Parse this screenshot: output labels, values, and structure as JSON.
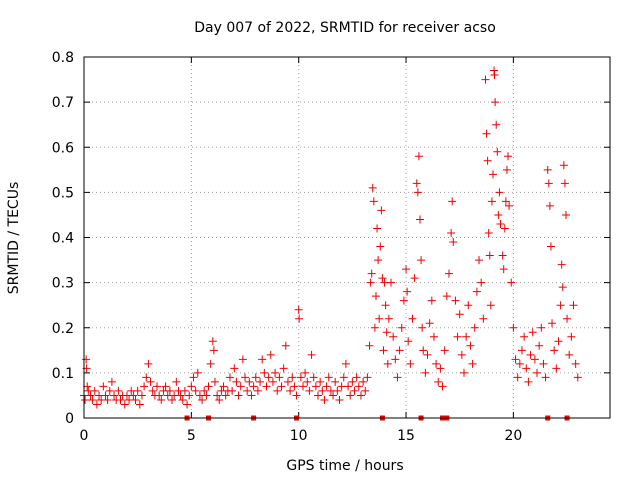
{
  "chart_data": {
    "type": "scatter",
    "title": "Day 007 of 2022, SRMTID for receiver acso",
    "xlabel": "GPS time / hours",
    "ylabel": "SRMTID / TECUs",
    "xlim": [
      0,
      24.5
    ],
    "ylim": [
      0,
      0.8
    ],
    "xticks": [
      0,
      5,
      10,
      15,
      20
    ],
    "yticks": [
      0,
      0.1,
      0.2,
      0.3,
      0.4,
      0.5,
      0.6,
      0.7,
      0.8
    ],
    "grid": true,
    "marker": "+",
    "marker_color": "#ee0000",
    "series": [
      {
        "name": "SRMTID",
        "points": [
          [
            0.0,
            0.05
          ],
          [
            0.05,
            0.04
          ],
          [
            0.1,
            0.13
          ],
          [
            0.12,
            0.11
          ],
          [
            0.15,
            0.07
          ],
          [
            0.2,
            0.06
          ],
          [
            0.3,
            0.05
          ],
          [
            0.4,
            0.04
          ],
          [
            0.5,
            0.06
          ],
          [
            0.6,
            0.03
          ],
          [
            0.7,
            0.05
          ],
          [
            0.8,
            0.04
          ],
          [
            0.9,
            0.07
          ],
          [
            1.0,
            0.05
          ],
          [
            1.1,
            0.04
          ],
          [
            1.2,
            0.06
          ],
          [
            1.3,
            0.08
          ],
          [
            1.4,
            0.05
          ],
          [
            1.5,
            0.04
          ],
          [
            1.6,
            0.06
          ],
          [
            1.7,
            0.04
          ],
          [
            1.8,
            0.05
          ],
          [
            1.9,
            0.03
          ],
          [
            2.0,
            0.05
          ],
          [
            2.1,
            0.04
          ],
          [
            2.2,
            0.06
          ],
          [
            2.3,
            0.05
          ],
          [
            2.4,
            0.04
          ],
          [
            2.5,
            0.06
          ],
          [
            2.6,
            0.03
          ],
          [
            2.7,
            0.05
          ],
          [
            2.8,
            0.07
          ],
          [
            2.9,
            0.09
          ],
          [
            3.0,
            0.12
          ],
          [
            3.1,
            0.08
          ],
          [
            3.2,
            0.06
          ],
          [
            3.3,
            0.05
          ],
          [
            3.4,
            0.07
          ],
          [
            3.5,
            0.05
          ],
          [
            3.6,
            0.04
          ],
          [
            3.7,
            0.06
          ],
          [
            3.8,
            0.07
          ],
          [
            3.9,
            0.05
          ],
          [
            4.0,
            0.06
          ],
          [
            4.1,
            0.04
          ],
          [
            4.2,
            0.05
          ],
          [
            4.3,
            0.08
          ],
          [
            4.4,
            0.06
          ],
          [
            4.5,
            0.05
          ],
          [
            4.6,
            0.04
          ],
          [
            4.7,
            0.06
          ],
          [
            4.8,
            0.03
          ],
          [
            4.9,
            0.05
          ],
          [
            5.0,
            0.07
          ],
          [
            5.1,
            0.09
          ],
          [
            5.2,
            0.06
          ],
          [
            5.3,
            0.1
          ],
          [
            5.4,
            0.05
          ],
          [
            5.5,
            0.04
          ],
          [
            5.6,
            0.06
          ],
          [
            5.7,
            0.05
          ],
          [
            5.8,
            0.07
          ],
          [
            5.9,
            0.12
          ],
          [
            6.0,
            0.17
          ],
          [
            6.05,
            0.15
          ],
          [
            6.1,
            0.08
          ],
          [
            6.2,
            0.05
          ],
          [
            6.3,
            0.04
          ],
          [
            6.4,
            0.06
          ],
          [
            6.5,
            0.07
          ],
          [
            6.6,
            0.05
          ],
          [
            6.7,
            0.06
          ],
          [
            6.8,
            0.09
          ],
          [
            6.9,
            0.06
          ],
          [
            7.0,
            0.11
          ],
          [
            7.1,
            0.08
          ],
          [
            7.2,
            0.05
          ],
          [
            7.3,
            0.07
          ],
          [
            7.4,
            0.13
          ],
          [
            7.5,
            0.09
          ],
          [
            7.6,
            0.06
          ],
          [
            7.7,
            0.08
          ],
          [
            7.8,
            0.05
          ],
          [
            7.9,
            0.07
          ],
          [
            8.0,
            0.09
          ],
          [
            8.1,
            0.06
          ],
          [
            8.2,
            0.08
          ],
          [
            8.3,
            0.13
          ],
          [
            8.4,
            0.1
          ],
          [
            8.5,
            0.07
          ],
          [
            8.6,
            0.09
          ],
          [
            8.7,
            0.14
          ],
          [
            8.8,
            0.08
          ],
          [
            8.9,
            0.1
          ],
          [
            9.0,
            0.06
          ],
          [
            9.1,
            0.09
          ],
          [
            9.2,
            0.07
          ],
          [
            9.3,
            0.11
          ],
          [
            9.4,
            0.16
          ],
          [
            9.5,
            0.08
          ],
          [
            9.6,
            0.06
          ],
          [
            9.7,
            0.09
          ],
          [
            9.8,
            0.07
          ],
          [
            9.9,
            0.05
          ],
          [
            10.0,
            0.24
          ],
          [
            10.02,
            0.22
          ],
          [
            10.1,
            0.09
          ],
          [
            10.2,
            0.07
          ],
          [
            10.3,
            0.1
          ],
          [
            10.4,
            0.08
          ],
          [
            10.5,
            0.06
          ],
          [
            10.6,
            0.14
          ],
          [
            10.7,
            0.09
          ],
          [
            10.8,
            0.07
          ],
          [
            10.9,
            0.05
          ],
          [
            11.0,
            0.08
          ],
          [
            11.1,
            0.06
          ],
          [
            11.2,
            0.04
          ],
          [
            11.3,
            0.07
          ],
          [
            11.4,
            0.09
          ],
          [
            11.5,
            0.06
          ],
          [
            11.6,
            0.05
          ],
          [
            11.7,
            0.08
          ],
          [
            11.8,
            0.06
          ],
          [
            11.9,
            0.04
          ],
          [
            12.0,
            0.07
          ],
          [
            12.1,
            0.09
          ],
          [
            12.2,
            0.12
          ],
          [
            12.3,
            0.07
          ],
          [
            12.4,
            0.05
          ],
          [
            12.5,
            0.08
          ],
          [
            12.6,
            0.06
          ],
          [
            12.7,
            0.09
          ],
          [
            12.8,
            0.07
          ],
          [
            12.9,
            0.05
          ],
          [
            13.0,
            0.08
          ],
          [
            13.1,
            0.06
          ],
          [
            13.2,
            0.09
          ],
          [
            13.3,
            0.16
          ],
          [
            13.35,
            0.3
          ],
          [
            13.4,
            0.32
          ],
          [
            13.45,
            0.51
          ],
          [
            13.5,
            0.48
          ],
          [
            13.55,
            0.2
          ],
          [
            13.6,
            0.27
          ],
          [
            13.65,
            0.42
          ],
          [
            13.7,
            0.35
          ],
          [
            13.75,
            0.22
          ],
          [
            13.8,
            0.38
          ],
          [
            13.85,
            0.46
          ],
          [
            13.9,
            0.31
          ],
          [
            13.95,
            0.15
          ],
          [
            14.0,
            0.3
          ],
          [
            14.05,
            0.25
          ],
          [
            14.1,
            0.19
          ],
          [
            14.15,
            0.12
          ],
          [
            14.2,
            0.22
          ],
          [
            14.3,
            0.3
          ],
          [
            14.4,
            0.18
          ],
          [
            14.5,
            0.13
          ],
          [
            14.6,
            0.09
          ],
          [
            14.7,
            0.15
          ],
          [
            14.8,
            0.2
          ],
          [
            14.9,
            0.26
          ],
          [
            15.0,
            0.33
          ],
          [
            15.05,
            0.28
          ],
          [
            15.1,
            0.17
          ],
          [
            15.2,
            0.12
          ],
          [
            15.3,
            0.22
          ],
          [
            15.4,
            0.31
          ],
          [
            15.5,
            0.52
          ],
          [
            15.55,
            0.5
          ],
          [
            15.6,
            0.58
          ],
          [
            15.65,
            0.44
          ],
          [
            15.7,
            0.35
          ],
          [
            15.75,
            0.2
          ],
          [
            15.8,
            0.15
          ],
          [
            15.9,
            0.1
          ],
          [
            16.0,
            0.14
          ],
          [
            16.1,
            0.21
          ],
          [
            16.2,
            0.26
          ],
          [
            16.3,
            0.18
          ],
          [
            16.4,
            0.12
          ],
          [
            16.5,
            0.08
          ],
          [
            16.6,
            0.11
          ],
          [
            16.7,
            0.07
          ],
          [
            16.8,
            0.15
          ],
          [
            16.9,
            0.27
          ],
          [
            17.0,
            0.32
          ],
          [
            17.1,
            0.41
          ],
          [
            17.15,
            0.48
          ],
          [
            17.2,
            0.39
          ],
          [
            17.3,
            0.26
          ],
          [
            17.4,
            0.18
          ],
          [
            17.5,
            0.23
          ],
          [
            17.6,
            0.14
          ],
          [
            17.7,
            0.1
          ],
          [
            17.8,
            0.18
          ],
          [
            17.9,
            0.25
          ],
          [
            18.0,
            0.16
          ],
          [
            18.1,
            0.12
          ],
          [
            18.2,
            0.2
          ],
          [
            18.3,
            0.28
          ],
          [
            18.4,
            0.35
          ],
          [
            18.5,
            0.3
          ],
          [
            18.6,
            0.22
          ],
          [
            18.7,
            0.75
          ],
          [
            18.75,
            0.63
          ],
          [
            18.8,
            0.57
          ],
          [
            18.85,
            0.41
          ],
          [
            18.9,
            0.36
          ],
          [
            18.95,
            0.25
          ],
          [
            19.0,
            0.48
          ],
          [
            19.05,
            0.54
          ],
          [
            19.1,
            0.77
          ],
          [
            19.12,
            0.76
          ],
          [
            19.15,
            0.7
          ],
          [
            19.2,
            0.65
          ],
          [
            19.25,
            0.59
          ],
          [
            19.3,
            0.45
          ],
          [
            19.35,
            0.5
          ],
          [
            19.4,
            0.43
          ],
          [
            19.5,
            0.36
          ],
          [
            19.55,
            0.33
          ],
          [
            19.6,
            0.42
          ],
          [
            19.65,
            0.48
          ],
          [
            19.7,
            0.55
          ],
          [
            19.75,
            0.58
          ],
          [
            19.8,
            0.47
          ],
          [
            19.9,
            0.3
          ],
          [
            20.0,
            0.2
          ],
          [
            20.1,
            0.13
          ],
          [
            20.2,
            0.09
          ],
          [
            20.3,
            0.12
          ],
          [
            20.4,
            0.15
          ],
          [
            20.5,
            0.18
          ],
          [
            20.6,
            0.11
          ],
          [
            20.7,
            0.08
          ],
          [
            20.8,
            0.14
          ],
          [
            20.9,
            0.19
          ],
          [
            21.0,
            0.13
          ],
          [
            21.1,
            0.1
          ],
          [
            21.2,
            0.16
          ],
          [
            21.3,
            0.2
          ],
          [
            21.4,
            0.12
          ],
          [
            21.5,
            0.09
          ],
          [
            21.6,
            0.55
          ],
          [
            21.65,
            0.52
          ],
          [
            21.7,
            0.47
          ],
          [
            21.75,
            0.38
          ],
          [
            21.8,
            0.21
          ],
          [
            21.9,
            0.15
          ],
          [
            22.0,
            0.11
          ],
          [
            22.1,
            0.17
          ],
          [
            22.2,
            0.25
          ],
          [
            22.25,
            0.34
          ],
          [
            22.3,
            0.29
          ],
          [
            22.35,
            0.56
          ],
          [
            22.4,
            0.52
          ],
          [
            22.45,
            0.45
          ],
          [
            22.5,
            0.22
          ],
          [
            22.6,
            0.14
          ],
          [
            22.7,
            0.18
          ],
          [
            22.8,
            0.25
          ],
          [
            22.9,
            0.12
          ],
          [
            23.0,
            0.09
          ]
        ]
      }
    ],
    "data_gap_markers_x": [
      4.8,
      5.8,
      7.9,
      9.9,
      13.9,
      15.7,
      16.7,
      16.8,
      16.9,
      21.6,
      22.5
    ]
  }
}
